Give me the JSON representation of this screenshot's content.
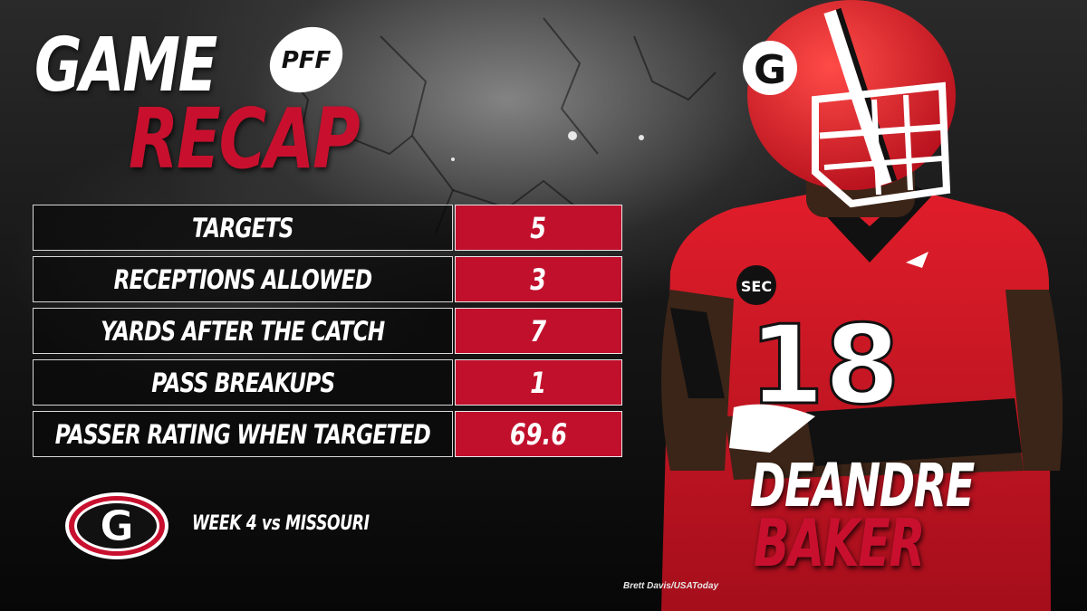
{
  "title": {
    "line1": "GAME",
    "line2": "RECAP"
  },
  "brand": {
    "logo_text": "PFF"
  },
  "stats": [
    {
      "label": "TARGETS",
      "value": "5"
    },
    {
      "label": "RECEPTIONS ALLOWED",
      "value": "3"
    },
    {
      "label": "YARDS AFTER THE CATCH",
      "value": "7"
    },
    {
      "label": "PASS BREAKUPS",
      "value": "1"
    },
    {
      "label": "PASSER RATING WHEN TARGETED",
      "value": "69.6"
    }
  ],
  "game": {
    "week_label": "WEEK 4 vs MISSOURI",
    "team_logo_letter": "G"
  },
  "player": {
    "first_name": "DEANDRE",
    "last_name": "BAKER",
    "jersey_number": "18",
    "conference_patch": "SEC"
  },
  "photo_credit": "Brett Davis/USAToday",
  "colors": {
    "accent_red": "#c8102e",
    "table_red": "#c0102c",
    "text_white": "#ffffff",
    "background": "#111111"
  },
  "icons": {
    "brand_logo": "pff-football-icon",
    "team_logo": "georgia-g-logo-icon"
  }
}
